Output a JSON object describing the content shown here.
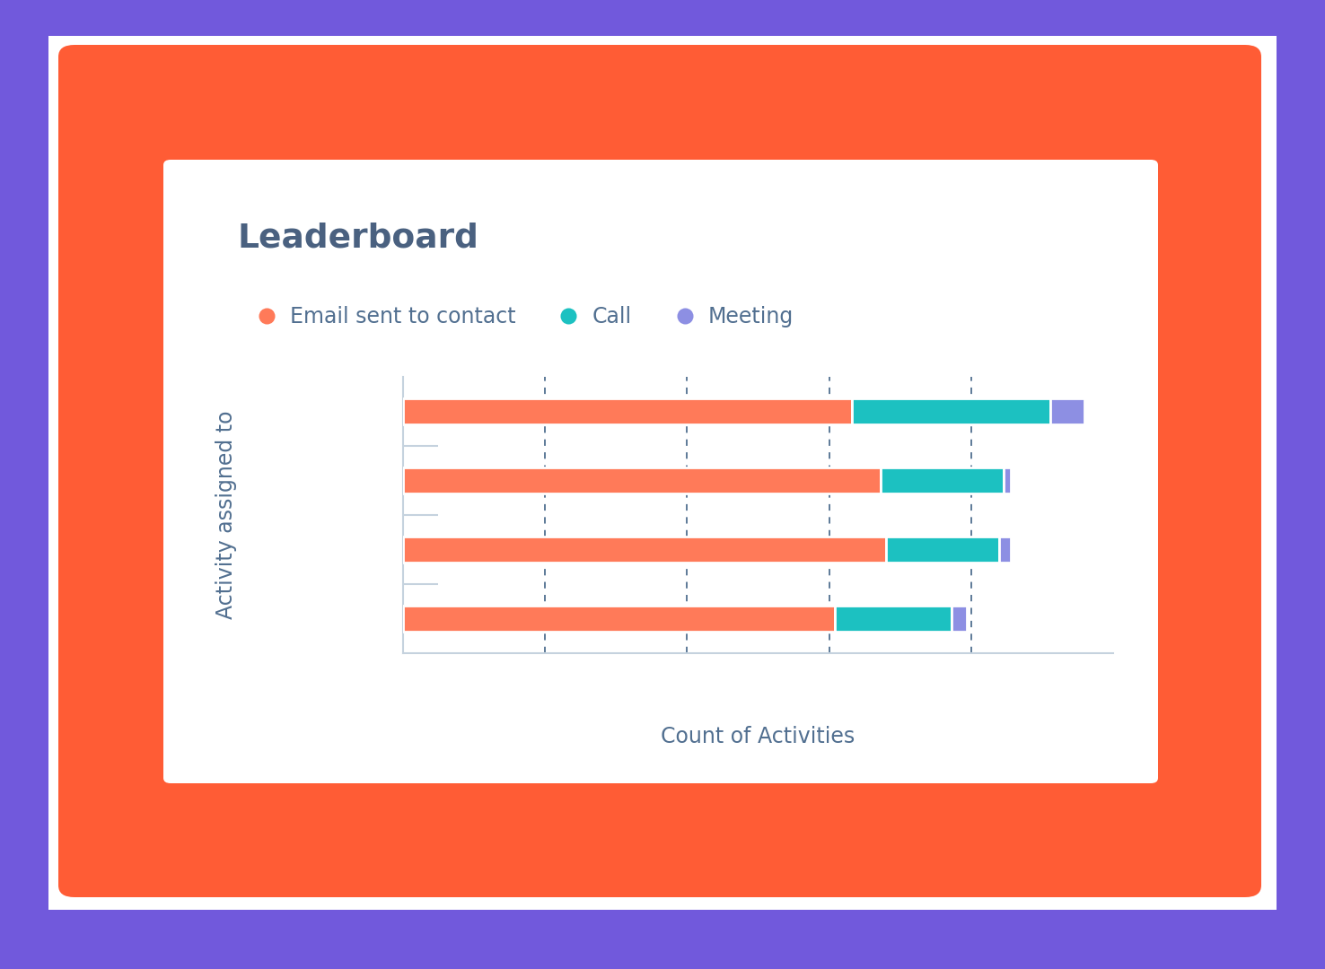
{
  "chart_data": {
    "type": "bar",
    "title": "Leaderboard",
    "orientation": "horizontal",
    "stacked": true,
    "categories": [
      null,
      null,
      null,
      null
    ],
    "series": [
      {
        "name": "Email sent to contact",
        "color": "#ff7a59",
        "values": [
          316,
          336,
          340,
          304
        ]
      },
      {
        "name": "Call",
        "color": "#1cc1c1",
        "values": [
          140,
          87,
          80,
          82
        ]
      },
      {
        "name": "Meeting",
        "color": "#8d8fe3",
        "values": [
          24,
          5,
          8,
          11
        ]
      }
    ],
    "xlabel": "Count of Activities",
    "ylabel": "Activity assigned to",
    "xlim": [
      0,
      500
    ],
    "xticks": [
      0,
      100,
      200,
      300,
      400
    ],
    "grid": true,
    "legend": "upper left",
    "tick_labels": false
  }
}
